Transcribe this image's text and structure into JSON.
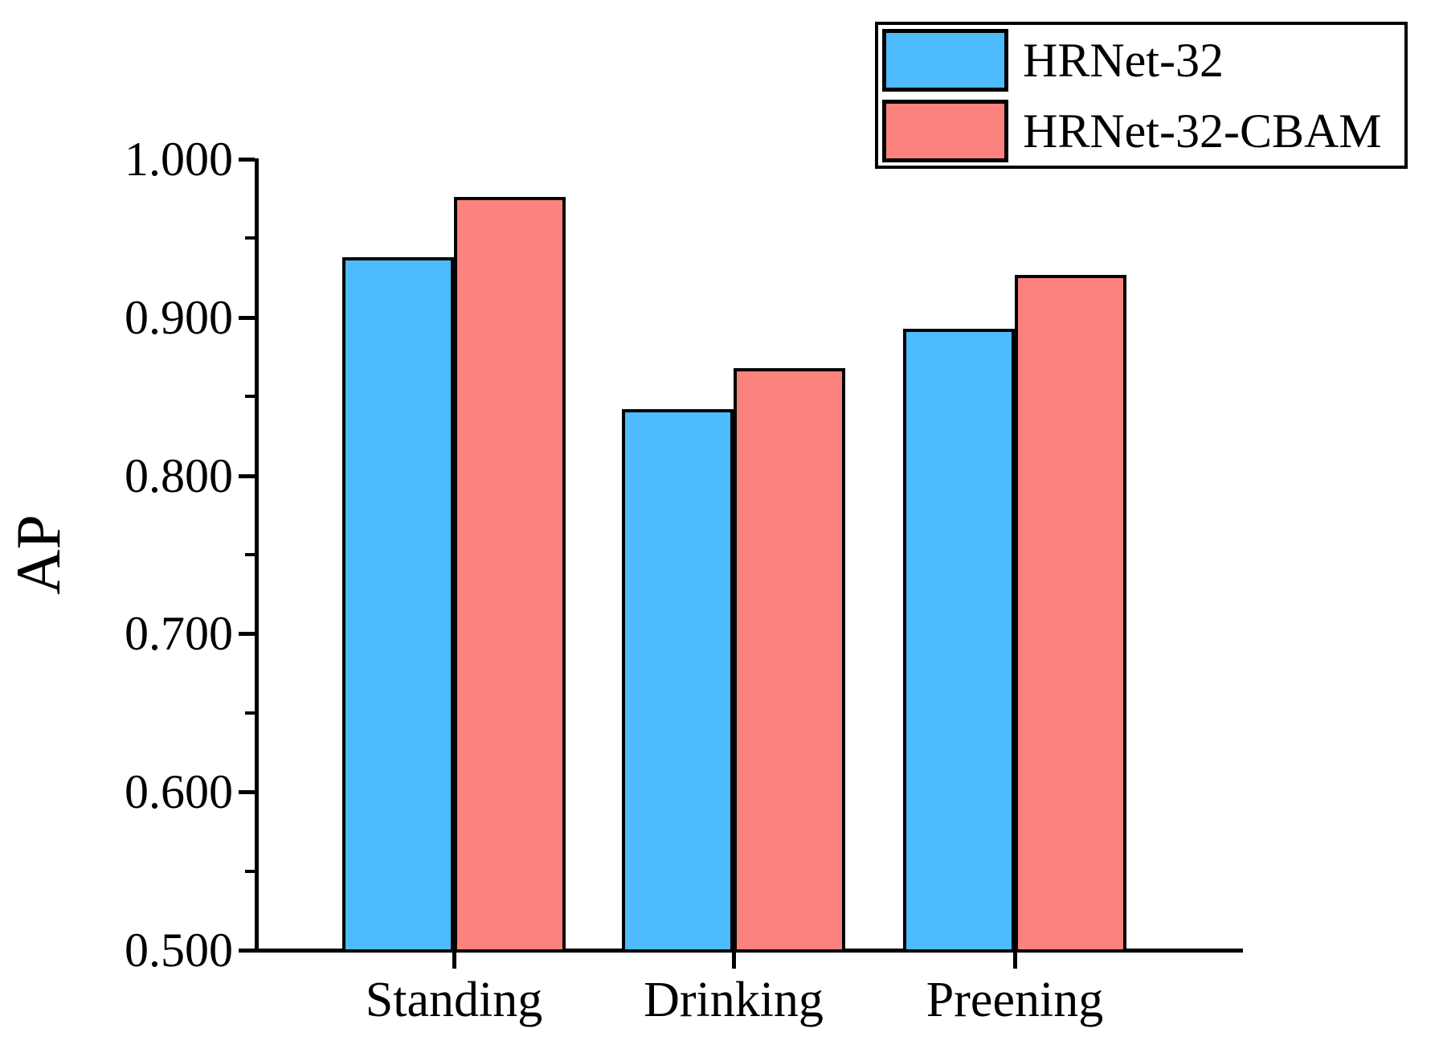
{
  "chart_data": {
    "type": "bar",
    "title": "",
    "xlabel": "",
    "ylabel": "AP",
    "categories": [
      "Standing",
      "Drinking",
      "Preening"
    ],
    "series": [
      {
        "name": "HRNet-32",
        "color": "#4DBBFC",
        "values": [
          0.938,
          0.842,
          0.893
        ]
      },
      {
        "name": "HRNet-32-CBAM",
        "color": "#FC827E",
        "values": [
          0.976,
          0.868,
          0.927
        ]
      }
    ],
    "ylim": [
      0.5,
      1.0
    ],
    "y_major_ticks": [
      0.5,
      0.6,
      0.7,
      0.8,
      0.9,
      1.0
    ],
    "y_tick_labels": [
      "0.500",
      "0.600",
      "0.700",
      "0.800",
      "0.900",
      "1.000"
    ],
    "y_minor_ticks": [
      0.55,
      0.65,
      0.75,
      0.85,
      0.95
    ],
    "grid": false,
    "legend_position": "top-right",
    "bar_edge_color": "#000000",
    "axis_color": "#000000",
    "background_color": "#ffffff"
  }
}
